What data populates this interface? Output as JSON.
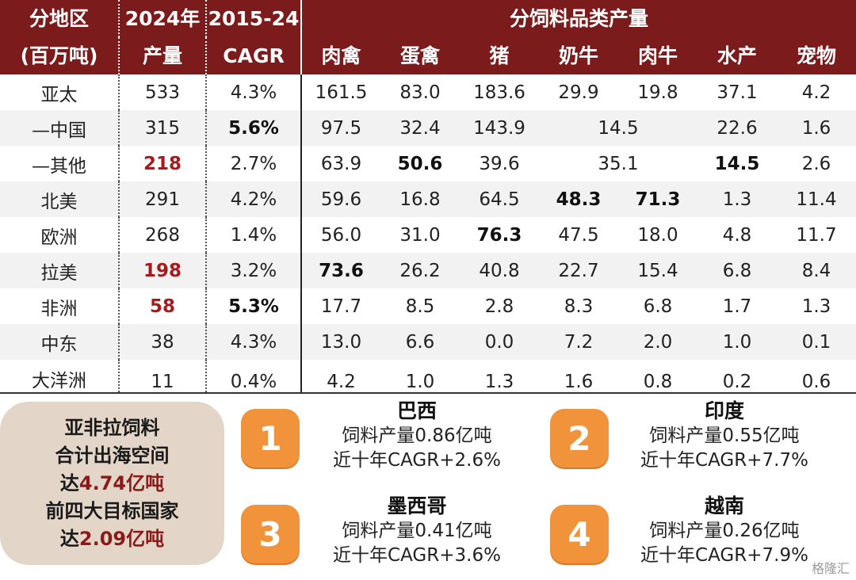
{
  "header": {
    "region_label_1": "分地区",
    "region_label_2": "(百万吨)",
    "output_label_1": "2024年",
    "output_label_2": "产量",
    "cagr_label_1": "2015-24",
    "cagr_label_2": "CAGR",
    "category_group": "分饲料品类产量",
    "categories": [
      "肉禽",
      "蛋禽",
      "猪",
      "奶牛",
      "肉牛",
      "水产",
      "宠物"
    ]
  },
  "rows": [
    {
      "region": "亚太",
      "output": "533",
      "cagr": "4.3%",
      "c": [
        "161.5",
        "83.0",
        "183.6",
        "29.9",
        "19.8",
        "37.1",
        "4.2"
      ]
    },
    {
      "region": "—中国",
      "output": "315",
      "cagr": "5.6%",
      "cattle": "14.5",
      "c": [
        "97.5",
        "32.4",
        "143.9",
        "22.6",
        "1.6"
      ]
    },
    {
      "region": "—其他",
      "output": "218",
      "cagr": "2.7%",
      "cattle": "35.1",
      "c": [
        "63.9",
        "50.6",
        "39.6",
        "14.5",
        "2.6"
      ]
    },
    {
      "region": "北美",
      "output": "291",
      "cagr": "4.2%",
      "c": [
        "59.6",
        "16.8",
        "64.5",
        "48.3",
        "71.3",
        "1.3",
        "11.4"
      ]
    },
    {
      "region": "欧洲",
      "output": "268",
      "cagr": "1.4%",
      "c": [
        "56.0",
        "31.0",
        "76.3",
        "47.5",
        "18.0",
        "4.8",
        "11.7"
      ]
    },
    {
      "region": "拉美",
      "output": "198",
      "cagr": "3.2%",
      "c": [
        "73.6",
        "26.2",
        "40.8",
        "22.7",
        "15.4",
        "6.8",
        "8.4"
      ]
    },
    {
      "region": "非洲",
      "output": "58",
      "cagr": "5.3%",
      "c": [
        "17.7",
        "8.5",
        "2.8",
        "8.3",
        "6.8",
        "1.7",
        "1.3"
      ]
    },
    {
      "region": "中东",
      "output": "38",
      "cagr": "4.3%",
      "c": [
        "13.0",
        "6.6",
        "0.0",
        "7.2",
        "2.0",
        "1.0",
        "0.1"
      ]
    },
    {
      "region": "大洋洲",
      "output": "11",
      "cagr": "0.4%",
      "c": [
        "4.2",
        "1.0",
        "1.3",
        "1.6",
        "0.8",
        "0.2",
        "0.6"
      ]
    }
  ],
  "summary": {
    "line1": "亚非拉饲料",
    "line2": "合计出海空间",
    "line3_prefix": "达",
    "line3_value": "4.74亿吨",
    "line4": "前四大目标国家",
    "line5_prefix": "达",
    "line5_value": "2.09亿吨"
  },
  "targets": [
    {
      "rank": "1",
      "name": "巴西",
      "output": "饲料产量0.86亿吨",
      "cagr": "近十年CAGR+2.6%"
    },
    {
      "rank": "2",
      "name": "印度",
      "output": "饲料产量0.55亿吨",
      "cagr": "近十年CAGR+7.7%"
    },
    {
      "rank": "3",
      "name": "墨西哥",
      "output": "饲料产量0.41亿吨",
      "cagr": "近十年CAGR+3.6%"
    },
    {
      "rank": "4",
      "name": "越南",
      "output": "饲料产量0.26亿吨",
      "cagr": "近十年CAGR+7.9%"
    }
  ],
  "watermark": "格隆汇",
  "colors": {
    "header_bg": "#7b1b1c",
    "highlight_red": "#a61b1d",
    "badge_orange": "#f0933a",
    "summary_bg": "#e3d6c8"
  }
}
